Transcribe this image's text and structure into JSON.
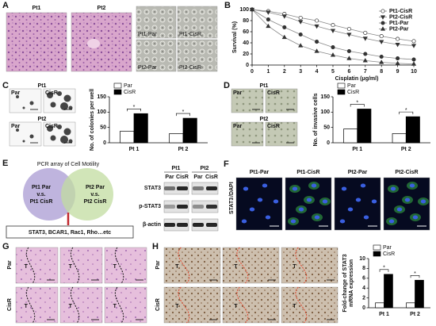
{
  "panel_labels": [
    "A",
    "B",
    "C",
    "D",
    "E",
    "F",
    "G",
    "H"
  ],
  "panel_a": {
    "he_labels": [
      "Pt1",
      "Pt2"
    ],
    "micro_labels": [
      "Pt1-Par",
      "Pt1-CisR",
      "Pt2-Par",
      "Pt2-CisR"
    ]
  },
  "panel_c": {
    "groups": [
      {
        "title": "Pt1",
        "labels": [
          "Par",
          "CisR"
        ]
      },
      {
        "title": "Pt2",
        "labels": [
          "Par",
          "CisR"
        ]
      }
    ]
  },
  "panel_d": {
    "groups": [
      {
        "title": "Pt1",
        "labels": [
          "Par",
          "CisR"
        ]
      },
      {
        "title": "Pt2",
        "labels": [
          "Par",
          "CisR"
        ]
      }
    ]
  },
  "panel_e": {
    "title": "PCR array of Cell Motility",
    "left": [
      "Pt1 Par",
      "v.s.",
      "Pt1 CisR"
    ],
    "right": [
      "Pt2 Par",
      "v.s.",
      "Pt2 CisR"
    ],
    "genes": "STAT3, BCAR1, Rac1, Rho…etc",
    "blot_groups": [
      "Pt1",
      "Pt2"
    ],
    "lane_labels": [
      "Par",
      "CisR",
      "Par",
      "CisR"
    ],
    "proteins": [
      "STAT3",
      "p-STAT3",
      "β-actin"
    ]
  },
  "panel_f": {
    "stain": [
      "STAT3",
      "/DAPI"
    ],
    "labels": [
      "Pt1-Par",
      "Pt1-CisR",
      "Pt2-Par",
      "Pt2-CisR"
    ]
  },
  "panel_g": {
    "rows": [
      "Par",
      "CisR"
    ],
    "tumor_label": "T"
  },
  "panel_h": {
    "rows": [
      "Par",
      "CisR"
    ],
    "tumor_label": "T"
  },
  "chart_data": [
    {
      "type": "line",
      "xlabel": "Cisplatin (μg/ml)",
      "ylabel": "Survival (%)",
      "x": [
        0,
        1,
        2,
        3,
        4,
        5,
        6,
        7,
        8,
        9,
        10
      ],
      "xlim": [
        0,
        10
      ],
      "xticks": [
        0,
        1,
        2,
        3,
        4,
        5,
        6,
        7,
        8,
        9,
        10
      ],
      "ylim": [
        0,
        100
      ],
      "yticks": [
        0,
        20,
        40,
        60,
        80,
        100
      ],
      "legend": "upper right",
      "series": [
        {
          "name": "Pt1-CisR",
          "color": "#333333",
          "marker": "circle-open",
          "values": [
            100,
            97,
            92,
            85,
            80,
            72,
            65,
            58,
            52,
            47,
            43
          ]
        },
        {
          "name": "Pt2-CisR",
          "color": "#333333",
          "marker": "triangle-down",
          "values": [
            100,
            95,
            88,
            78,
            70,
            62,
            55,
            48,
            42,
            37,
            35
          ]
        },
        {
          "name": "Pt1-Par",
          "color": "#333333",
          "marker": "circle",
          "values": [
            100,
            82,
            68,
            55,
            42,
            32,
            25,
            20,
            15,
            12,
            10
          ]
        },
        {
          "name": "Pt2-Par",
          "color": "#333333",
          "marker": "triangle",
          "values": [
            100,
            70,
            50,
            35,
            25,
            18,
            12,
            8,
            5,
            3,
            2
          ]
        }
      ]
    },
    {
      "type": "bar",
      "ylabel": [
        "No. of colonies per well"
      ],
      "categories": [
        "Pt 1",
        "Pt 2"
      ],
      "ylim": [
        0,
        150
      ],
      "yticks": [
        0,
        50,
        100,
        150
      ],
      "legend": "upper left",
      "significance": [
        "*",
        "*"
      ],
      "series": [
        {
          "name": "Par",
          "color": "#ffffff",
          "values": [
            38,
            30
          ]
        },
        {
          "name": "CisR",
          "color": "#000000",
          "values": [
            95,
            80
          ]
        }
      ]
    },
    {
      "type": "bar",
      "ylabel": [
        "No. of invasive cells"
      ],
      "categories": [
        "Pt 1",
        "Pt 2"
      ],
      "ylim": [
        0,
        150
      ],
      "yticks": [
        0,
        50,
        100,
        150
      ],
      "legend": "upper left",
      "significance": [
        "*",
        "*"
      ],
      "series": [
        {
          "name": "Par",
          "color": "#ffffff",
          "values": [
            45,
            30
          ]
        },
        {
          "name": "CisR",
          "color": "#000000",
          "values": [
            110,
            85
          ]
        }
      ]
    },
    {
      "type": "bar",
      "ylabel": [
        "Fold-change of STAT3",
        "mRNA expression"
      ],
      "categories": [
        "Pt 1",
        "Pt 2"
      ],
      "ylim": [
        0,
        10
      ],
      "yticks": [
        0,
        2,
        4,
        6,
        8,
        10
      ],
      "legend": "upper left",
      "significance": [
        "*",
        "*"
      ],
      "series": [
        {
          "name": "Par",
          "color": "#ffffff",
          "values": [
            1,
            1
          ]
        },
        {
          "name": "CisR",
          "color": "#000000",
          "values": [
            6.8,
            5.6
          ]
        }
      ]
    }
  ]
}
